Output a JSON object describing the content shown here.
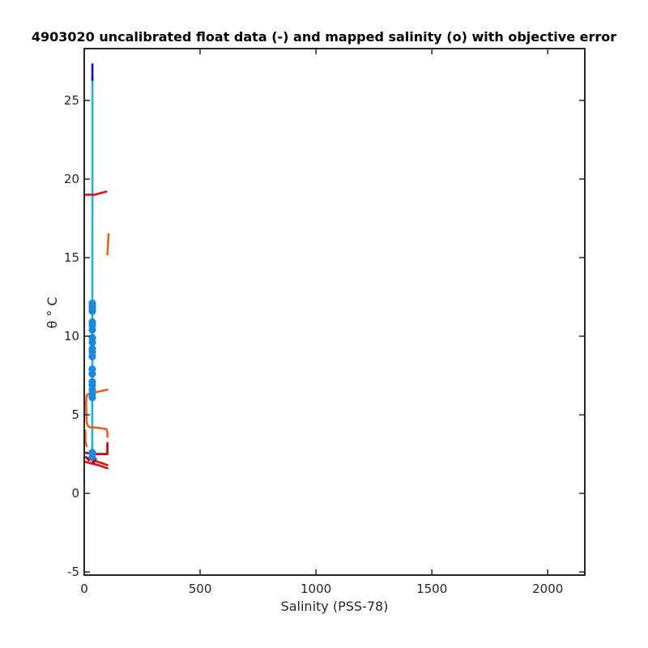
{
  "chart_data": {
    "type": "line",
    "title": "4903020 uncalibrated float data (-) and mapped salinity (o) with objective error",
    "xlabel": "Salinity (PSS-78)",
    "ylabel": "θ ° C",
    "xlim": [
      0,
      2160
    ],
    "ylim": [
      -5.2,
      28.3
    ],
    "xticks": [
      0,
      500,
      1000,
      1500,
      2000
    ],
    "yticks": [
      -5,
      0,
      5,
      10,
      15,
      20,
      25
    ],
    "grid": false,
    "colors": {
      "float_profile_main": "#1ab0f0",
      "float_profile_top": "#1010c8",
      "mapped_points": "#0f8fe6",
      "outlier_red": "#e01010",
      "outlier_orange": "#f06010",
      "outlier_darkred": "#c00000"
    },
    "series": [
      {
        "color": "#1ab0f0",
        "x": [
          34.5,
          34.5,
          34.6,
          34.7,
          34.8,
          34.9,
          35.0,
          35.1,
          35.2,
          35.3,
          35.2
        ],
        "y": [
          2.1,
          2.8,
          4.0,
          6.0,
          8.0,
          10.0,
          12.0,
          15.0,
          18.0,
          22.0,
          26.6
        ]
      },
      {
        "color": "#1010c8",
        "x": [
          35.3,
          35.3
        ],
        "y": [
          26.3,
          27.3
        ]
      },
      {
        "color": "#e01010",
        "x": [
          0,
          45,
          95
        ],
        "y": [
          19.0,
          19.0,
          19.2
        ]
      },
      {
        "color": "#f06010",
        "x": [
          100,
          105
        ],
        "y": [
          15.2,
          16.5
        ]
      },
      {
        "color": "#f06010",
        "x": [
          100,
          40,
          15,
          10,
          8,
          10,
          15,
          25,
          40
        ],
        "y": [
          6.6,
          6.4,
          6.3,
          6.2,
          5.8,
          4.6,
          4.3,
          4.2,
          4.2
        ]
      },
      {
        "color": "#f06010",
        "x": [
          40,
          95,
          100,
          100
        ],
        "y": [
          4.2,
          4.1,
          3.9,
          3.6
        ]
      },
      {
        "color": "#f06010",
        "x": [
          5,
          5,
          10
        ],
        "y": [
          4.0,
          3.3,
          3.0
        ]
      },
      {
        "color": "#c00000",
        "x": [
          0,
          40,
          100,
          100
        ],
        "y": [
          2.6,
          2.5,
          2.5,
          3.2
        ]
      },
      {
        "color": "#e01010",
        "x": [
          5,
          60,
          100
        ],
        "y": [
          2.3,
          2.0,
          1.8
        ]
      },
      {
        "color": "#e01010",
        "x": [
          5,
          60,
          100
        ],
        "y": [
          2.0,
          1.8,
          1.6
        ]
      },
      {
        "color": "#c00000",
        "x": [
          10,
          20,
          30,
          40,
          50
        ],
        "y": [
          2.3,
          2.1,
          2.4,
          1.9,
          2.2
        ]
      }
    ],
    "mapped_points": {
      "x": [
        34.5,
        34.5,
        34.5,
        34.5,
        34.6,
        34.6,
        34.6,
        34.7,
        34.7,
        34.7,
        34.8,
        34.8,
        34.8,
        34.8,
        34.9,
        34.9,
        34.9,
        34.9,
        35.0,
        35.0,
        35.0
      ],
      "y": [
        2.3,
        2.6,
        6.1,
        6.3,
        6.6,
        6.9,
        7.1,
        7.6,
        7.9,
        8.7,
        9.0,
        9.2,
        9.6,
        9.9,
        10.4,
        10.7,
        10.9,
        11.6,
        11.8,
        11.9,
        12.1
      ]
    }
  }
}
